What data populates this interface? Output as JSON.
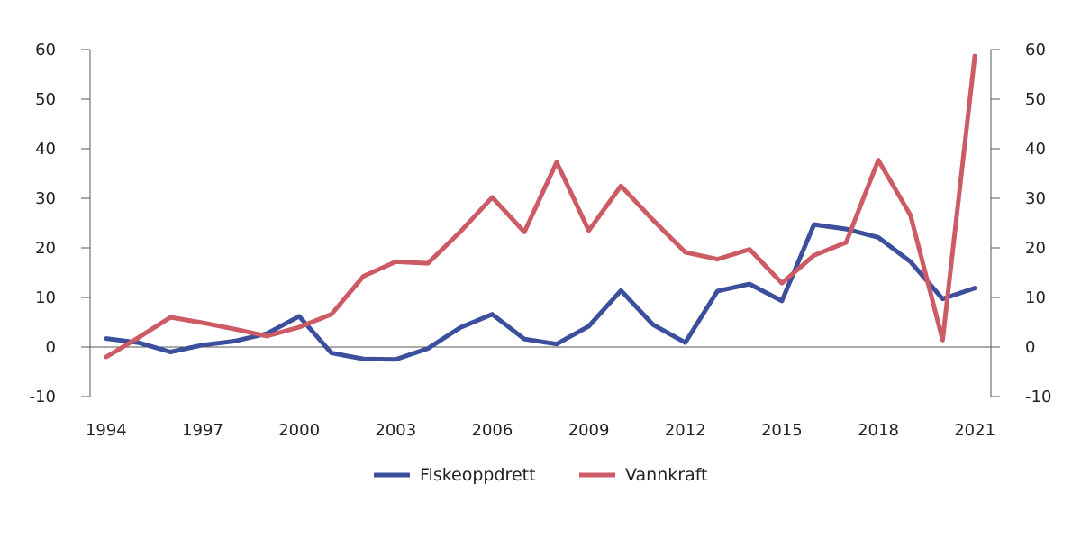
{
  "chart_data": {
    "type": "line",
    "title": "",
    "xlabel": "",
    "ylabel": "",
    "ylim": [
      -10,
      60
    ],
    "xlim": [
      1994,
      2021
    ],
    "y_ticks": [
      -10,
      0,
      10,
      20,
      30,
      40,
      50,
      60
    ],
    "y_tick_labels": [
      "-10",
      "0",
      "10",
      "20",
      "30",
      "40",
      "50",
      "60"
    ],
    "x_ticks": [
      1994,
      1997,
      2000,
      2003,
      2006,
      2009,
      2012,
      2015,
      2018,
      2021
    ],
    "x_tick_labels": [
      "1994",
      "1997",
      "2000",
      "2003",
      "2006",
      "2009",
      "2012",
      "2015",
      "2018",
      "2021"
    ],
    "grid": false,
    "secondary_y_axis": true,
    "legend_position": "bottom",
    "x": [
      1994,
      1995,
      1996,
      1997,
      1998,
      1999,
      2000,
      2001,
      2002,
      2003,
      2004,
      2005,
      2006,
      2007,
      2008,
      2009,
      2010,
      2011,
      2012,
      2013,
      2014,
      2015,
      2016,
      2017,
      2018,
      2019,
      2020,
      2021
    ],
    "series": [
      {
        "name": "Fiskeoppdrett",
        "color": "#3b4f9c",
        "values": [
          1.7,
          0.9,
          -1.0,
          0.4,
          1.2,
          2.7,
          6.2,
          -1.2,
          -2.4,
          -2.5,
          -0.3,
          3.9,
          6.6,
          1.6,
          0.6,
          4.2,
          11.4,
          4.5,
          0.9,
          11.3,
          12.7,
          9.3,
          24.7,
          23.8,
          22.1,
          17.2,
          9.7,
          11.9
        ]
      },
      {
        "name": "Vannkraft",
        "color": "#cc5b66",
        "values": [
          -2.0,
          1.9,
          6.0,
          4.9,
          3.6,
          2.2,
          4.0,
          6.6,
          14.3,
          17.2,
          16.9,
          23.2,
          30.2,
          23.2,
          37.3,
          23.5,
          32.5,
          25.6,
          19.1,
          17.7,
          19.7,
          12.9,
          18.5,
          21.1,
          37.7,
          26.6,
          1.4,
          58.7
        ]
      }
    ]
  }
}
